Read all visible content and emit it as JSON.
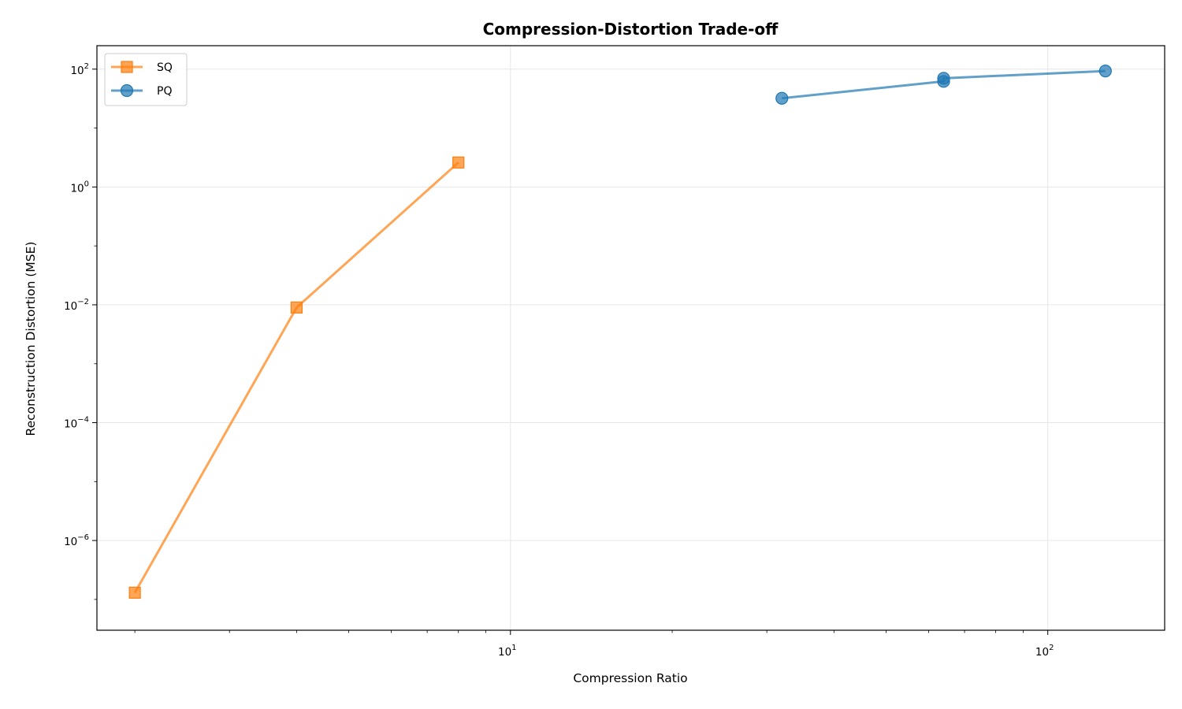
{
  "chart_data": {
    "type": "line",
    "title": "Compression-Distortion Trade-off",
    "xlabel": "Compression Ratio",
    "ylabel": "Reconstruction Distortion (MSE)",
    "xscale": "log",
    "yscale": "log",
    "xlim": [
      1.7,
      165
    ],
    "ylim": [
      3e-08,
      250
    ],
    "grid": true,
    "legend_position": "top-left",
    "x_major_ticks": [
      {
        "value": 10,
        "base": "10",
        "exp": "1"
      },
      {
        "value": 100,
        "base": "10",
        "exp": "2"
      }
    ],
    "y_major_ticks": [
      {
        "value": 100,
        "base": "10",
        "exp": "2"
      },
      {
        "value": 1,
        "base": "10",
        "exp": "0"
      },
      {
        "value": 0.01,
        "base": "10",
        "exp": "−2"
      },
      {
        "value": 0.0001,
        "base": "10",
        "exp": "−4"
      },
      {
        "value": 1e-06,
        "base": "10",
        "exp": "−6"
      }
    ],
    "series": [
      {
        "name": "SQ",
        "color": "#ff7f0e",
        "marker": "square",
        "x": [
          2,
          4,
          8
        ],
        "y": [
          1.3e-07,
          0.009,
          2.6
        ]
      },
      {
        "name": "PQ",
        "color": "#1f77b4",
        "marker": "circle",
        "x": [
          32,
          64,
          64,
          128
        ],
        "y": [
          32,
          62,
          70,
          93
        ]
      }
    ]
  }
}
